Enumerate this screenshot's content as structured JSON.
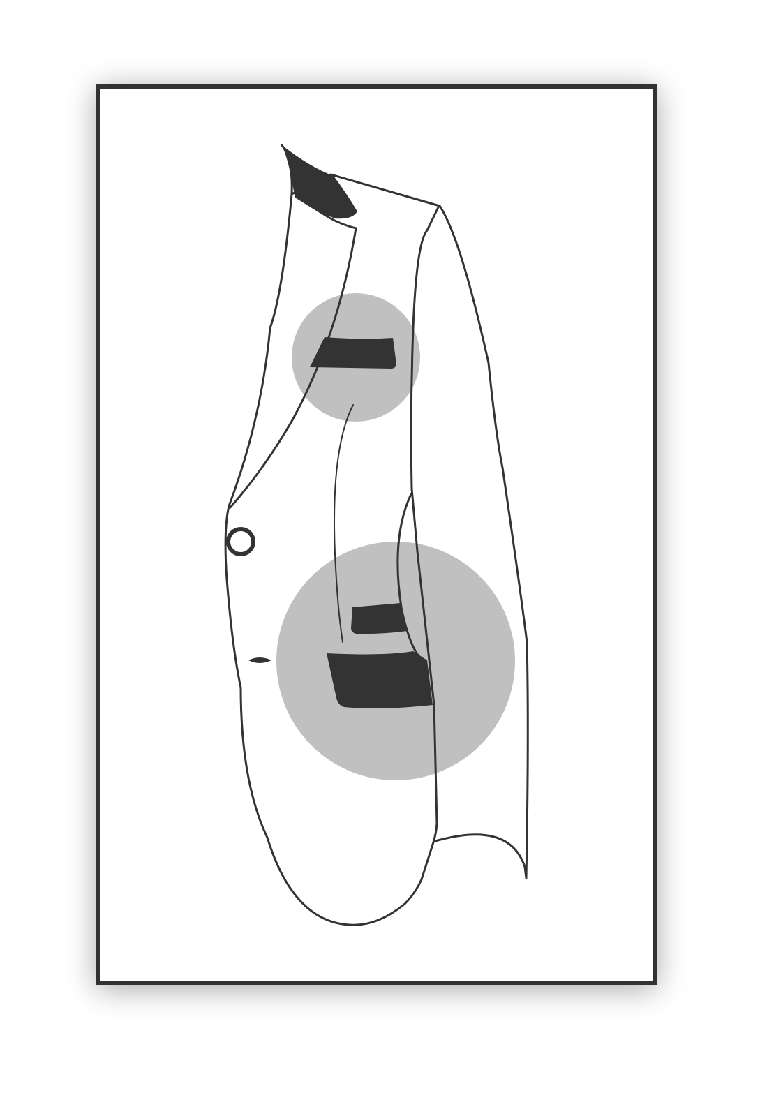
{
  "illustration": {
    "subject": "jacket-side-view",
    "colors": {
      "background": "#ffffff",
      "outline": "#333333",
      "highlight": "#c0c0c0",
      "fill": "#333333"
    },
    "highlights": [
      {
        "target": "breast-pocket-flap"
      },
      {
        "target": "lower-pocket-flaps"
      }
    ]
  }
}
